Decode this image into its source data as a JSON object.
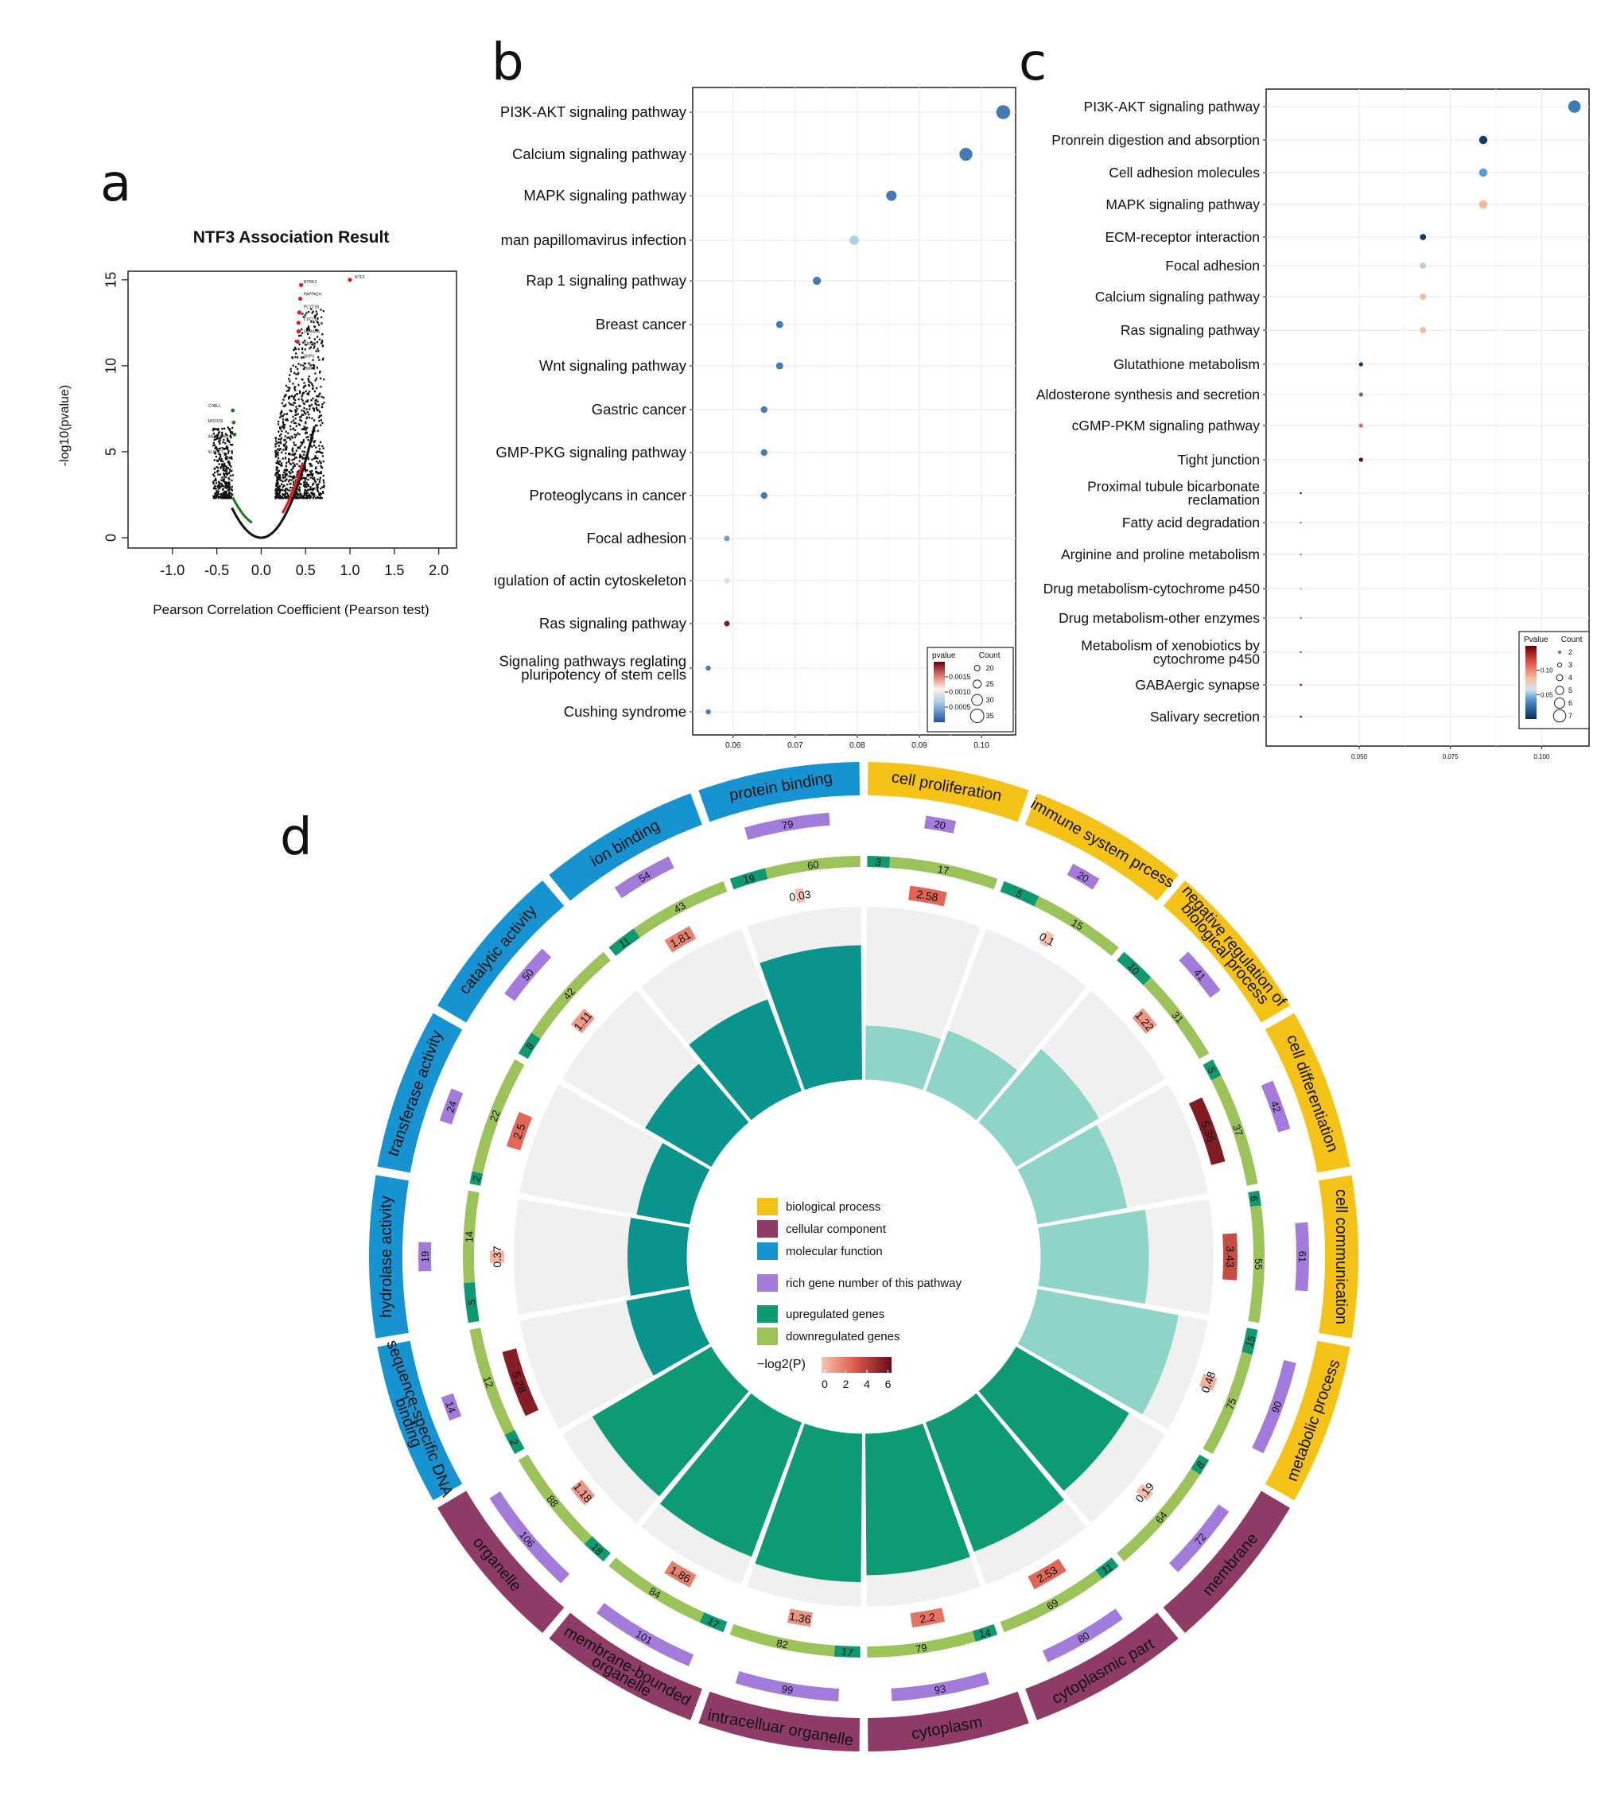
{
  "panel_labels": {
    "a": "a",
    "b": "b",
    "c": "c",
    "d": "d"
  },
  "chart_data": [
    {
      "id": "a",
      "type": "scatter",
      "title": "NTF3 Association Result",
      "xlabel": "Pearson Correlation Coefficient (Pearson test)",
      "ylabel": "-log10(pvalue)",
      "xlim": [
        -1.5,
        2.2
      ],
      "ylim": [
        -0.6,
        15.5
      ],
      "xticks": [
        "-1.0",
        "-0.5",
        "0.0",
        "0.5",
        "1.0",
        "1.5",
        "2.0"
      ],
      "yticks": [
        "0",
        "5",
        "10",
        "15"
      ],
      "highlight": {
        "label": "NTF3",
        "x": 1.0,
        "y": 15.0
      },
      "series_colors": {
        "null": "#111111",
        "positive": "#e41a1c",
        "negative": "#1a7a1a"
      },
      "tiny_labels_right": [
        "NTRK2",
        "PAPPA2H",
        "PCYT1B",
        "CXCL14",
        "SEMA5A",
        "GRM5",
        "SRPX",
        "TIMP3"
      ],
      "tiny_labels_left": [
        "COBLL",
        "MOCOS",
        "ANKRD39",
        "KLHDC1"
      ]
    },
    {
      "id": "b",
      "type": "scatter",
      "x_ticks": [
        "0.06",
        "0.07",
        "0.08",
        "0.09",
        "0.10"
      ],
      "xlim": [
        0.0535,
        0.1055
      ],
      "categories": [
        "PI3K-AKT signaling pathway",
        "Calcium signaling pathway",
        "MAPK signaling pathway",
        "man papillomavirus infection",
        "Rap 1 signaling pathway",
        "Breast cancer",
        "Wnt signaling pathway",
        "Gastric cancer",
        "GMP-PKG signaling pathway",
        "Proteoglycans in cancer",
        "Focal adhesion",
        "ıgulation of actin cytoskeleton",
        "Ras signaling pathway",
        "Signaling pathways reglating\npluripotency of stem cells",
        "Cushing syndrome"
      ],
      "gene_ratio": [
        0.1035,
        0.0975,
        0.0855,
        0.0795,
        0.0735,
        0.0675,
        0.0675,
        0.065,
        0.065,
        0.065,
        0.059,
        0.059,
        0.059,
        0.056,
        0.056
      ],
      "count": [
        36,
        34,
        29,
        27,
        25,
        23,
        23,
        22,
        22,
        22,
        20,
        20,
        20,
        19,
        19
      ],
      "pvalue": [
        0.0002,
        0.0002,
        0.0002,
        0.0007,
        0.0002,
        0.0002,
        0.0002,
        0.0002,
        0.0002,
        0.0002,
        0.0004,
        0.0009,
        0.0019,
        0.0002,
        0.0002
      ],
      "legend": {
        "color_title": "pvalue",
        "color_ticks": [
          "0.0015",
          "0.0010",
          "0.0005"
        ],
        "size_title": "Count",
        "size_ticks": [
          "20",
          "25",
          "30",
          "35"
        ]
      }
    },
    {
      "id": "c",
      "type": "scatter",
      "x_ticks": [
        "0.050",
        "0.075",
        "0.100"
      ],
      "xlim": [
        0.0245,
        0.113
      ],
      "categories": [
        "PI3K-AKT signaling pathway",
        "Pronrein digestion and absorption",
        "Cell adhesion molecules",
        "MAPK signaling pathway",
        "ECM-receptor interaction",
        "Focal adhesion",
        "Calcium signaling pathway",
        "Ras signaling pathway",
        "Glutathione metabolism",
        "Aldosterone synthesis and secretion",
        "cGMP-PKM signaling pathway",
        "Tight junction",
        "Proximal tubule bicarbonate\nreclamation",
        "Fatty acid degradation",
        "Arginine and proline metabolism",
        "Drug metabolism-cytochrome p450",
        "Drug metabolism-other enzymes",
        "Metabolism of xenobiotics by\ncytochrome p450",
        "GABAergic synapse",
        "Salivary secretion"
      ],
      "gene_ratio": [
        0.109,
        0.084,
        0.084,
        0.084,
        0.0675,
        0.0675,
        0.0675,
        0.0675,
        0.0505,
        0.0505,
        0.0505,
        0.0505,
        0.034,
        0.034,
        0.034,
        0.034,
        0.034,
        0.034,
        0.034,
        0.034
      ],
      "count": [
        7,
        5,
        5,
        5,
        4,
        4,
        4,
        4,
        3,
        3,
        3,
        3,
        2,
        2,
        2,
        2,
        2,
        2,
        2,
        2
      ],
      "pvalue": [
        0.03,
        0.005,
        0.04,
        0.085,
        0.005,
        0.055,
        0.085,
        0.085,
        0.005,
        0.03,
        0.11,
        0.15,
        0.005,
        0.04,
        0.04,
        0.09,
        0.11,
        0.12,
        0.15,
        0.15
      ],
      "legend": {
        "color_title": "Pvalue",
        "color_ticks": [
          "0.10",
          "0.05"
        ],
        "size_title": "Count",
        "size_ticks": [
          "2",
          "3",
          "4",
          "5",
          "6",
          "7"
        ]
      }
    },
    {
      "id": "d",
      "type": "circos",
      "terms": [
        {
          "name": "cell proliferation",
          "group": "bp",
          "up": 3,
          "down": 17,
          "total": 20,
          "logp": "2.58"
        },
        {
          "name": "immune system prcess",
          "group": "bp",
          "up": 5,
          "down": 15,
          "total": 20,
          "logp": "0.1"
        },
        {
          "name": "negative regulation of\nbiological process",
          "group": "bp",
          "up": 10,
          "down": 31,
          "total": 41,
          "logp": "1.22"
        },
        {
          "name": "cell differentiation",
          "group": "bp",
          "up": 5,
          "down": 37,
          "total": 42,
          "logp": "5.36"
        },
        {
          "name": "cell communication",
          "group": "bp",
          "up": 6,
          "down": 55,
          "total": 61,
          "logp": "3.43"
        },
        {
          "name": "metabolic process",
          "group": "bp",
          "up": 15,
          "down": 75,
          "total": 90,
          "logp": "0.48"
        },
        {
          "name": "membrane",
          "group": "cc",
          "up": 8,
          "down": 64,
          "total": 72,
          "logp": "0.19"
        },
        {
          "name": "cytoplasmic part",
          "group": "cc",
          "up": 11,
          "down": 69,
          "total": 80,
          "logp": "2.53"
        },
        {
          "name": "cytoplasm",
          "group": "cc",
          "up": 14,
          "down": 79,
          "total": 93,
          "logp": "2.2"
        },
        {
          "name": "intracelluar organelle",
          "group": "cc",
          "up": 17,
          "down": 82,
          "total": 99,
          "logp": "1.36"
        },
        {
          "name": "membrane-bounded\norganelle",
          "group": "cc",
          "up": 17,
          "down": 84,
          "total": 101,
          "logp": "1.86"
        },
        {
          "name": "organelle",
          "group": "cc",
          "up": 18,
          "down": 88,
          "total": 106,
          "logp": "1.18"
        },
        {
          "name": "sequence-specific DNA\nbinding",
          "group": "mf",
          "up": 2,
          "down": 12,
          "total": 14,
          "logp": "5.28"
        },
        {
          "name": "hydrolase activity",
          "group": "mf",
          "up": 5,
          "down": 14,
          "total": 19,
          "logp": "0.37"
        },
        {
          "name": "transferase activity",
          "group": "mf",
          "up": 2,
          "down": 22,
          "total": 24,
          "logp": "2.5"
        },
        {
          "name": "catalytic activity",
          "group": "mf",
          "up": 8,
          "down": 42,
          "total": 50,
          "logp": "1.11"
        },
        {
          "name": "ion binding",
          "group": "mf",
          "up": 11,
          "down": 43,
          "total": 54,
          "logp": "1.81"
        },
        {
          "name": "protein binding",
          "group": "mf",
          "up": 19,
          "down": 60,
          "total": 79,
          "logp": "0.03"
        }
      ],
      "inner_bar_ratio": [
        0.32,
        0.38,
        0.56,
        0.53,
        0.63,
        0.83,
        0.76,
        0.8,
        0.82,
        0.86,
        0.83,
        0.8,
        0.38,
        0.35,
        0.32,
        0.45,
        0.57,
        0.78
      ],
      "group_colors": {
        "bp": "#f5c218",
        "cc": "#8e3b67",
        "mf": "#1793d1"
      },
      "legend": {
        "items": [
          {
            "label": "biological process",
            "color": "#f5c218"
          },
          {
            "label": "cellular component",
            "color": "#8e3b67"
          },
          {
            "label": "molecular function",
            "color": "#1793d1"
          },
          {
            "label": "rich gene number of this pathway",
            "color": "#a37cdb"
          },
          {
            "label": "upregulated genes",
            "color": "#0f9970"
          },
          {
            "label": "downregulated genes",
            "color": "#9cc25a"
          }
        ],
        "colorbar_title": "−log2(P)",
        "colorbar_ticks": [
          "0",
          "2",
          "4",
          "6"
        ]
      },
      "colors": {
        "up": "#0f9970",
        "down": "#9cc25a",
        "total": "#a37cdb",
        "bar_light": "#8ed4c8",
        "bar_dark": "#0a948d",
        "bar_green": "#0e9a74",
        "grey": "#f0f0f0"
      }
    }
  ]
}
